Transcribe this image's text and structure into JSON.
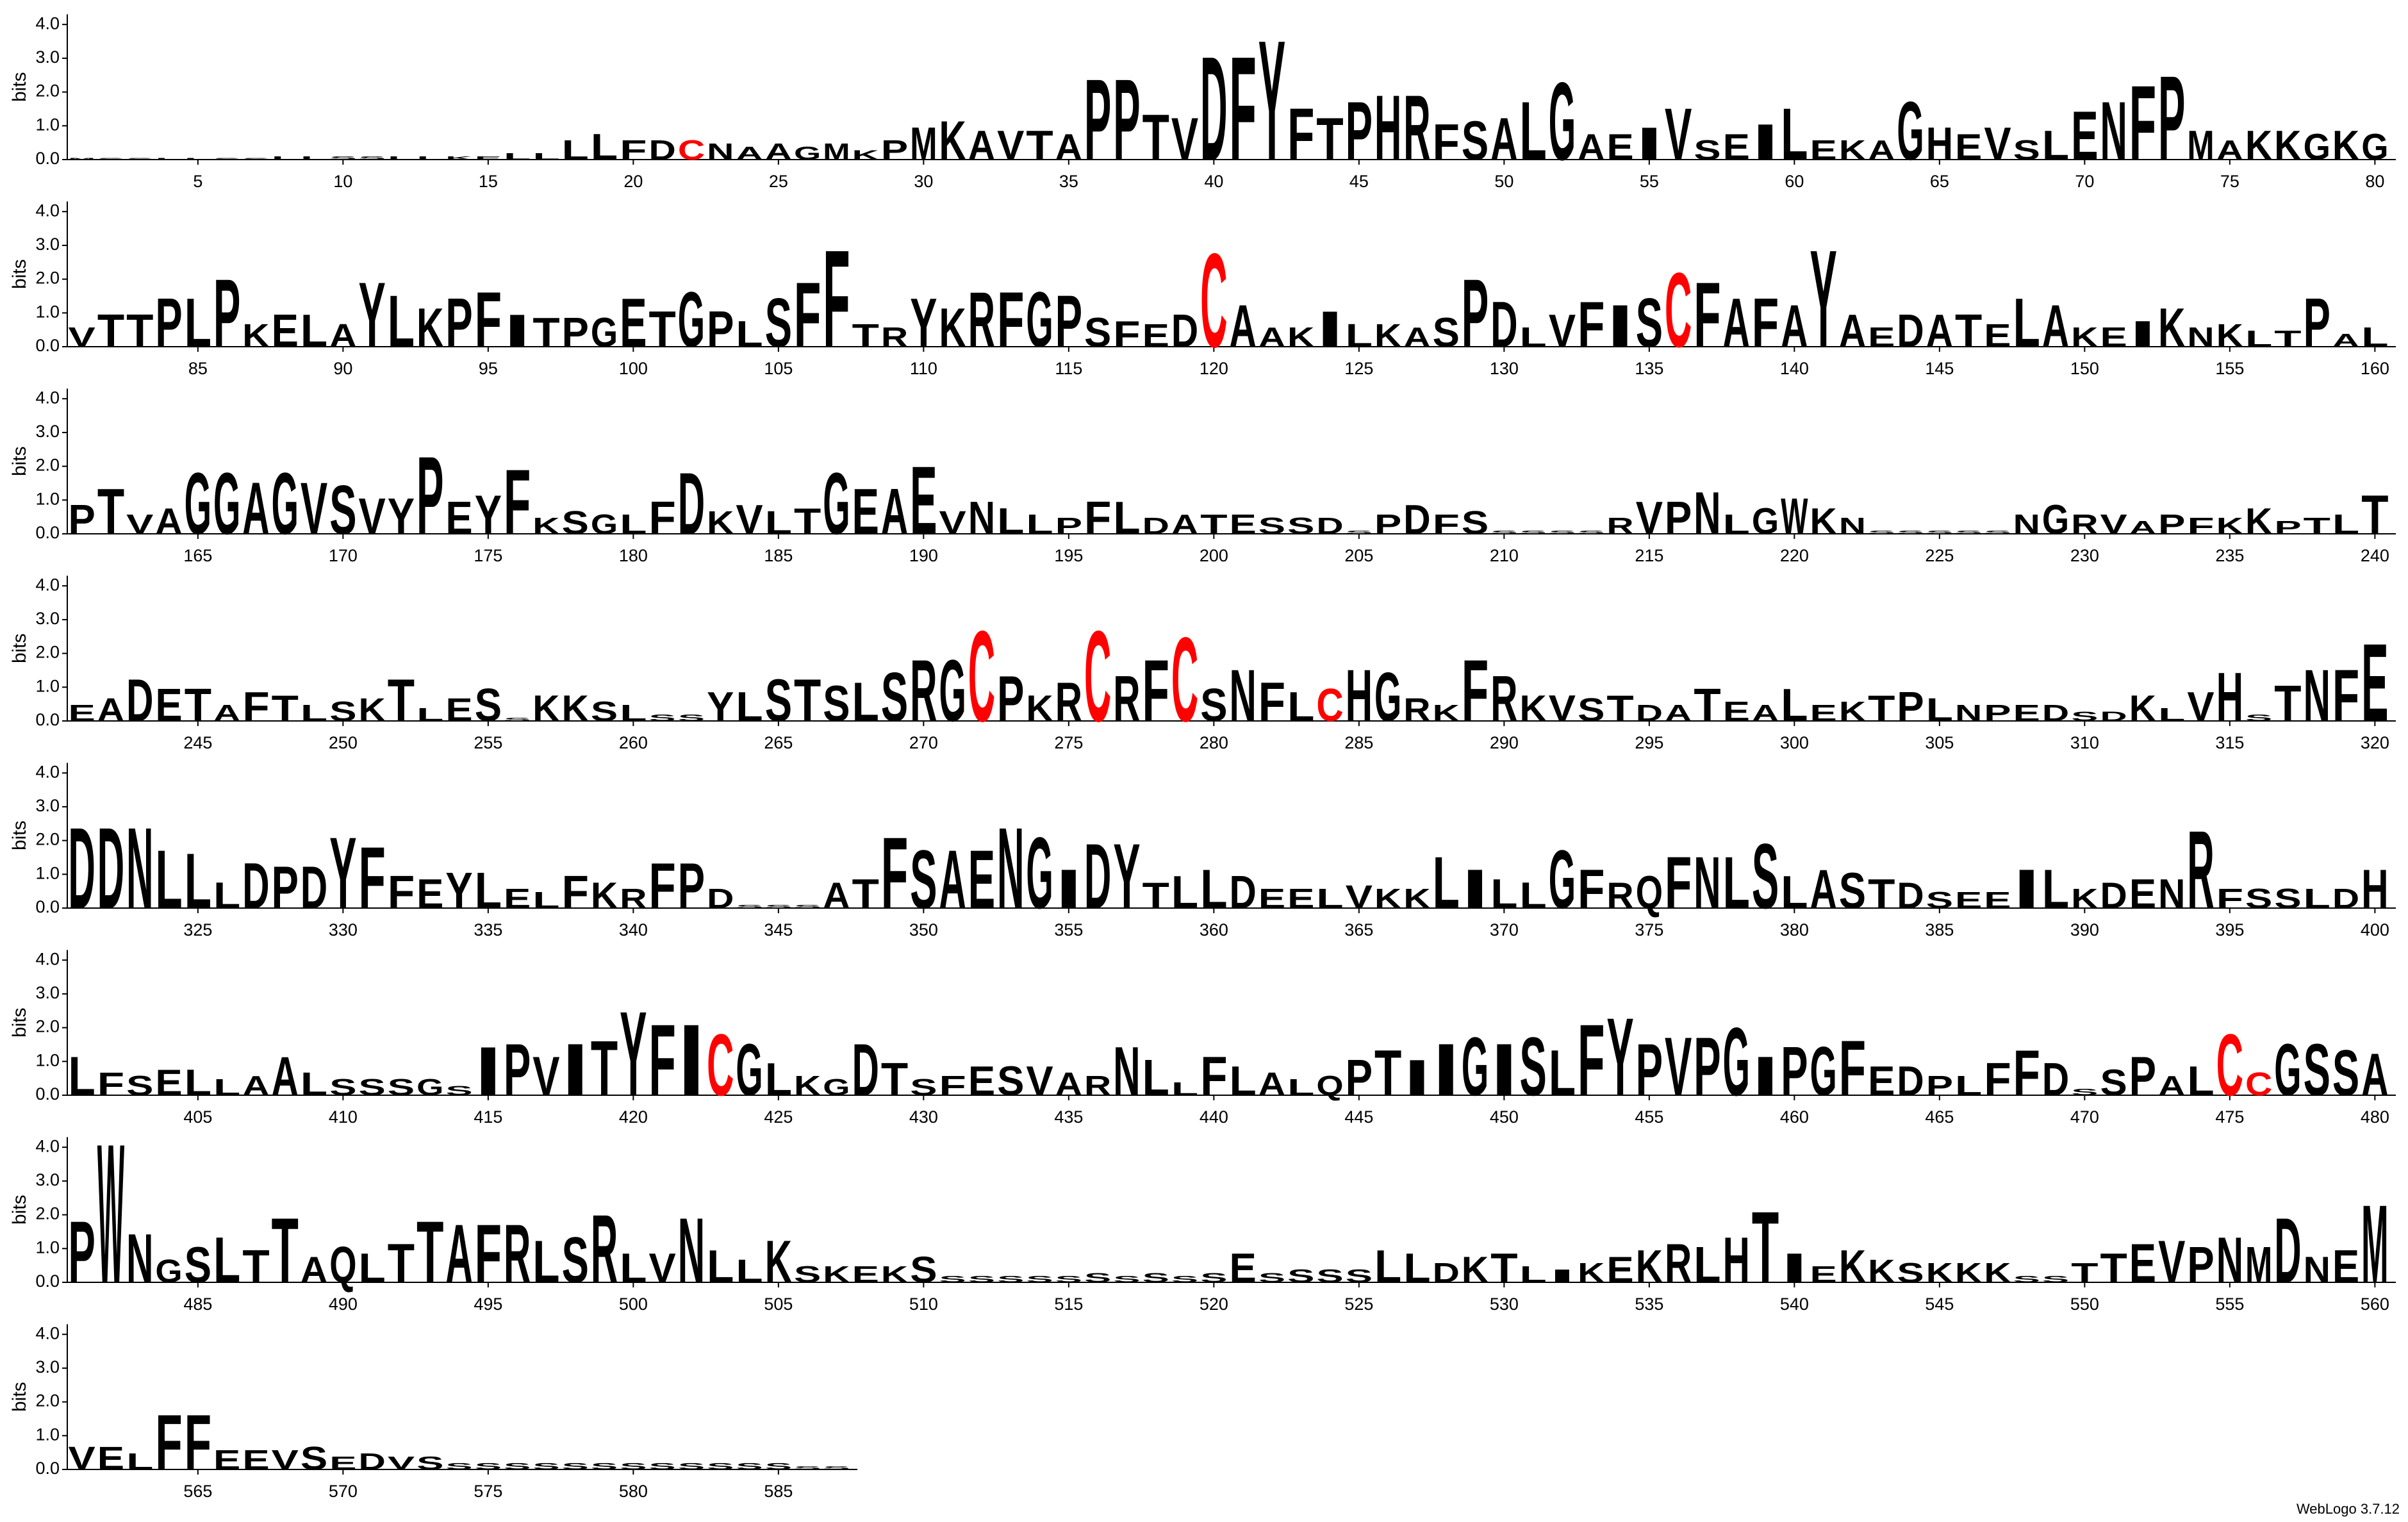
{
  "chart_data": {
    "type": "logo",
    "ylabel": "bits",
    "credit": "WebLogo 3.7.12",
    "color": "#000000",
    "letter_colors": {
      "C": "#ff0000"
    },
    "ylim": [
      0,
      4.3
    ],
    "yticks": [
      {
        "value": 0,
        "label": "0.0"
      },
      {
        "value": 1,
        "label": "1.0"
      },
      {
        "value": 2,
        "label": "2.0"
      },
      {
        "value": 3,
        "label": "3.0"
      },
      {
        "value": 4,
        "label": "4.0"
      }
    ],
    "xticks": [
      5,
      10,
      15,
      20,
      25,
      30,
      35,
      40,
      45,
      50,
      55,
      60,
      65,
      70,
      75,
      80,
      85,
      90,
      95,
      100,
      105,
      110,
      115,
      120,
      125,
      130,
      135,
      140,
      145,
      150,
      155,
      160,
      165,
      170,
      175,
      180,
      185,
      190,
      195,
      200,
      205,
      210,
      215,
      220,
      225,
      230,
      235,
      240,
      245,
      250,
      255,
      260,
      265,
      270,
      275,
      280,
      285,
      290,
      295,
      300,
      305,
      310,
      315,
      320,
      325,
      330,
      335,
      340,
      345,
      350,
      355,
      360,
      365,
      370,
      375,
      380,
      385,
      390,
      395,
      400,
      405,
      410,
      415,
      420,
      425,
      430,
      435,
      440,
      445,
      450,
      455,
      460,
      465,
      470,
      475,
      480,
      485,
      490,
      495,
      500,
      505,
      510,
      515,
      520,
      525,
      530,
      535,
      540,
      545,
      550,
      555,
      560,
      565,
      570,
      575,
      580,
      585
    ],
    "sequence": "MSSLLSSLLSSLLKELLLLFDCNAAGMKPMKAVTAPPTVDFYFTPHRFSALGAEIVSEILEKAGHEVSLENFPMAKKGKGVTTPLPKELAYLKPFITPGETGPLSFFTRYKRFGPSFEDCAAKILKASPDLVFISCFAFAYAEDATELAKEIKNKLTPALPTVAGGAGVSVYPEYFKSGLFDKVLTGEAEVNLLPFLDATESSDSPDFSSSSSRVPNLGWKNSSSSSNGRVAPFKKPTLTEADETAFTLSKTLESSKKSLSSYLSTSLSRGCPKRCRFCSNFLCHGRKFRKVSTDATEALEKTPLNPEDSDKLVHSTNFEDDNLLLDPDYFFEYLELFKRFPDSSSATFSAENGIDYTLLDEELVKKLILLGFRQFNLSLASTDSEEILKDENRFSSLDHLFSELLAALSSSGSIPVITYFICGLKGDTSFESVARNLLFLALQPTIIGISLFYPVPGIPGFEDPLFFDSSPALCCGSSAPWNGSLTTAQLTTAFRLSRLVNLLKSKEKSSSSSSSSSSSESSSSLLDKTLIKEKRLHTIEKKSKKKSSTTEVPNMDNEMVELFFEEVSEDVSSSSSSSSSSSSSSS",
    "values": [
      0.05,
      0.05,
      0.05,
      0.05,
      0.05,
      0.05,
      0.05,
      0.1,
      0.1,
      0.1,
      0.1,
      0.1,
      0.1,
      0.1,
      0.1,
      0.2,
      0.2,
      0.6,
      0.8,
      0.6,
      0.6,
      0.6,
      0.5,
      0.4,
      0.5,
      0.4,
      0.5,
      0.3,
      0.6,
      1.0,
      1.2,
      0.9,
      0.9,
      0.9,
      0.8,
      2.5,
      2.5,
      1.4,
      1.3,
      3.2,
      3.2,
      3.7,
      1.6,
      1.3,
      1.8,
      2.0,
      2.0,
      1.1,
      1.2,
      1.3,
      1.8,
      2.4,
      0.8,
      0.8,
      1.0,
      1.6,
      0.6,
      0.8,
      1.1,
      1.6,
      0.6,
      0.6,
      0.6,
      1.8,
      1.0,
      0.8,
      1.0,
      0.6,
      0.9,
      1.5,
      1.8,
      2.3,
      2.6,
      0.9,
      0.6,
      0.9,
      0.9,
      0.8,
      0.9,
      0.8,
      0.6,
      1.0,
      1.0,
      1.5,
      1.5,
      2.1,
      0.7,
      1.0,
      1.0,
      0.7,
      2.0,
      1.6,
      1.2,
      1.5,
      1.7,
      1.0,
      0.9,
      0.9,
      0.9,
      1.5,
      1.1,
      1.7,
      1.1,
      0.8,
      1.5,
      2.0,
      3.0,
      0.7,
      0.6,
      1.5,
      1.2,
      1.7,
      1.7,
      1.7,
      1.6,
      0.9,
      0.8,
      0.7,
      1.0,
      2.9,
      1.3,
      0.6,
      0.6,
      1.1,
      0.7,
      0.7,
      0.6,
      0.9,
      2.1,
      1.4,
      0.6,
      1.0,
      1.4,
      1.3,
      1.5,
      2.3,
      2.0,
      1.5,
      1.5,
      1.3,
      3.0,
      1.0,
      0.6,
      1.0,
      1.0,
      1.0,
      0.7,
      1.5,
      1.3,
      0.6,
      0.6,
      0.8,
      1.2,
      0.6,
      0.7,
      0.5,
      0.5,
      1.5,
      0.4,
      0.6,
      0.9,
      1.4,
      0.6,
      0.8,
      1.9,
      1.9,
      1.6,
      1.9,
      1.6,
      1.5,
      1.1,
      1.1,
      2.4,
      1.0,
      1.2,
      2.0,
      0.5,
      0.7,
      0.6,
      0.6,
      1.0,
      1.9,
      0.7,
      0.9,
      0.7,
      0.8,
      1.9,
      1.4,
      1.4,
      2.1,
      0.7,
      1.0,
      0.8,
      0.6,
      0.5,
      1.0,
      1.0,
      0.5,
      0.6,
      0.6,
      0.6,
      0.5,
      0.5,
      0.5,
      0.1,
      0.6,
      0.9,
      0.6,
      0.7,
      0.1,
      0.1,
      0.1,
      0.1,
      0.5,
      1.0,
      1.0,
      1.3,
      0.6,
      0.8,
      1.1,
      0.8,
      0.5,
      0.1,
      0.1,
      0.1,
      0.1,
      0.1,
      0.6,
      0.9,
      0.6,
      0.6,
      0.4,
      0.6,
      0.5,
      0.5,
      0.8,
      0.4,
      0.5,
      0.6,
      1.2,
      0.5,
      0.7,
      1.3,
      1.0,
      1.0,
      0.5,
      0.9,
      0.8,
      0.5,
      0.6,
      0.7,
      1.3,
      0.4,
      0.7,
      1.0,
      0.1,
      0.8,
      0.8,
      0.6,
      0.5,
      0.2,
      0.2,
      0.9,
      0.9,
      1.3,
      1.3,
      1.1,
      1.2,
      1.5,
      1.9,
      1.9,
      2.8,
      1.4,
      0.8,
      1.2,
      2.8,
      1.4,
      1.9,
      2.6,
      1.0,
      1.6,
      1.2,
      0.9,
      1.0,
      1.6,
      1.5,
      0.7,
      0.5,
      1.9,
      1.4,
      0.8,
      0.8,
      0.7,
      0.8,
      0.5,
      0.5,
      1.0,
      0.6,
      0.5,
      1.0,
      0.5,
      0.6,
      0.8,
      0.9,
      0.7,
      0.5,
      0.5,
      0.5,
      0.5,
      0.3,
      0.3,
      0.8,
      0.4,
      0.9,
      1.5,
      0.2,
      1.1,
      1.6,
      1.6,
      2.4,
      2.5,
      2.5,
      2.5,
      1.8,
      1.7,
      0.8,
      1.4,
      1.3,
      1.3,
      2.2,
      1.9,
      1.0,
      0.9,
      1.1,
      1.1,
      0.6,
      0.5,
      1.0,
      0.8,
      0.6,
      1.4,
      1.4,
      0.6,
      0.1,
      0.1,
      0.1,
      0.8,
      0.9,
      2.2,
      1.8,
      1.8,
      1.8,
      2.5,
      2.2,
      1.2,
      2.0,
      2.0,
      0.8,
      1.0,
      1.2,
      1.0,
      0.6,
      0.6,
      0.6,
      0.7,
      0.6,
      0.6,
      1.6,
      1.2,
      0.9,
      0.8,
      1.8,
      1.2,
      0.8,
      1.0,
      1.6,
      1.6,
      1.6,
      2.0,
      1.0,
      1.2,
      1.1,
      0.9,
      0.8,
      0.5,
      0.5,
      0.5,
      1.2,
      1.2,
      0.6,
      0.8,
      0.9,
      0.9,
      2.4,
      0.6,
      0.6,
      0.6,
      0.6,
      0.6,
      1.2,
      1.2,
      0.7,
      0.6,
      0.8,
      0.8,
      0.5,
      0.6,
      1.2,
      0.7,
      0.5,
      0.5,
      0.5,
      0.5,
      0.3,
      1.5,
      1.6,
      1.2,
      1.6,
      1.7,
      2.6,
      2.2,
      2.2,
      1.9,
      1.6,
      1.0,
      0.6,
      0.5,
      1.6,
      1.0,
      0.5,
      0.6,
      0.9,
      0.9,
      0.9,
      0.7,
      0.6,
      1.5,
      1.1,
      0.4,
      1.2,
      0.9,
      0.7,
      0.5,
      0.6,
      1.1,
      1.4,
      1.1,
      1.6,
      1.8,
      1.6,
      1.8,
      1.4,
      2.2,
      2.4,
      1.6,
      1.8,
      1.8,
      2.1,
      1.2,
      1.5,
      1.5,
      1.7,
      0.9,
      0.9,
      0.6,
      0.6,
      1.0,
      1.4,
      1.0,
      0.2,
      0.8,
      1.2,
      0.6,
      0.9,
      1.9,
      0.7,
      1.6,
      1.6,
      1.4,
      1.3,
      1.9,
      4.3,
      1.5,
      0.7,
      1.1,
      1.4,
      1.0,
      2.0,
      0.8,
      1.1,
      0.9,
      1.2,
      1.9,
      1.8,
      1.8,
      1.8,
      1.3,
      1.4,
      2.1,
      0.9,
      0.9,
      2.0,
      1.0,
      0.7,
      1.3,
      0.5,
      0.5,
      0.5,
      0.5,
      0.8,
      0.2,
      0.2,
      0.2,
      0.2,
      0.2,
      0.3,
      0.2,
      0.3,
      0.2,
      0.3,
      0.9,
      0.3,
      0.4,
      0.4,
      0.4,
      1.0,
      0.9,
      0.6,
      0.8,
      0.9,
      0.5,
      0.4,
      0.6,
      0.8,
      1.0,
      1.2,
      1.1,
      1.4,
      2.2,
      0.9,
      0.5,
      1.0,
      0.7,
      0.6,
      0.6,
      0.6,
      0.6,
      0.2,
      0.2,
      0.6,
      0.9,
      1.2,
      1.3,
      1.1,
      1.4,
      1.1,
      2.0,
      0.8,
      1.0,
      2.4,
      0.7,
      0.7,
      0.5,
      1.7,
      1.7,
      0.6,
      0.6,
      0.6,
      0.7,
      0.4,
      0.5,
      0.4,
      0.4,
      0.2,
      0.2,
      0.2,
      0.2,
      0.2,
      0.2,
      0.2,
      0.2,
      0.2,
      0.2,
      0.2,
      0.2,
      0.1,
      0.1
    ]
  }
}
